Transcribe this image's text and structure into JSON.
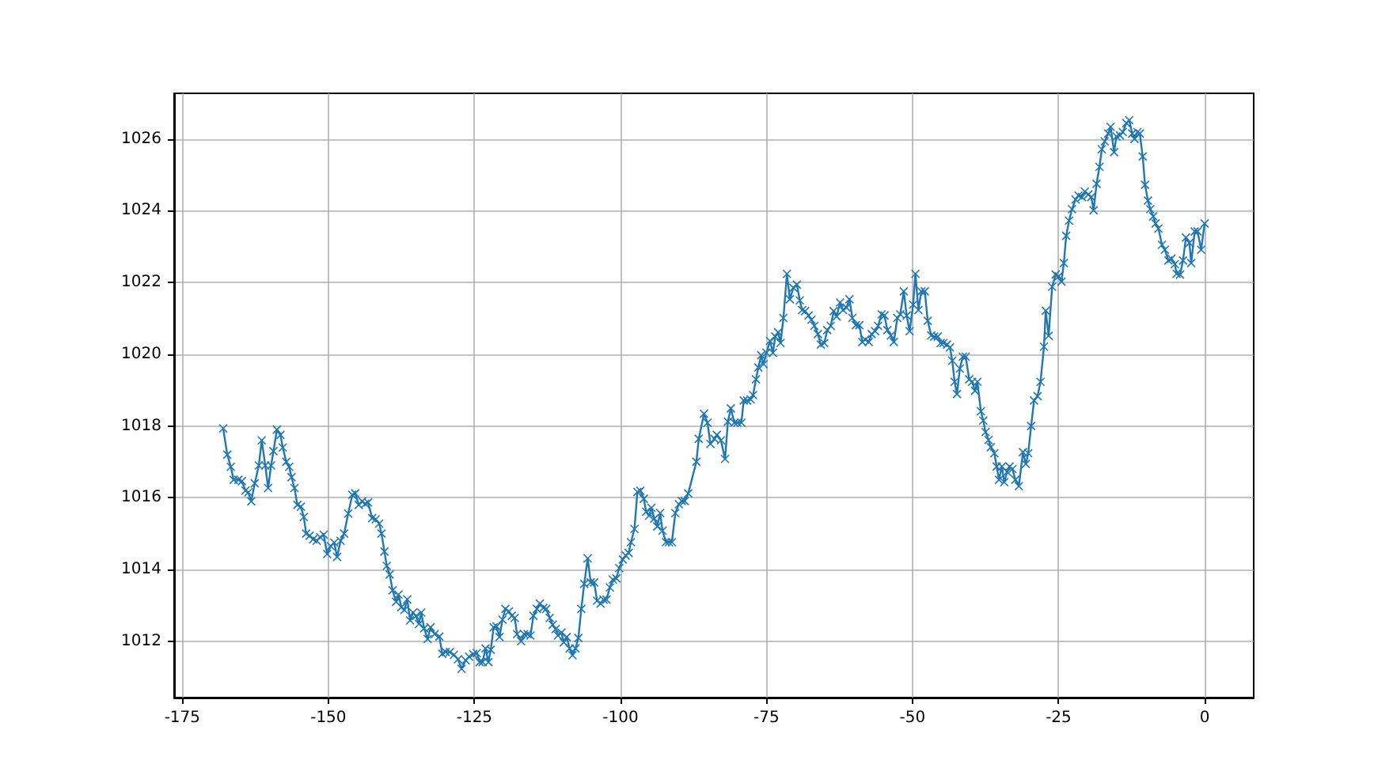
{
  "chart_data": {
    "type": "line",
    "marker": "cross",
    "grid": true,
    "xlim": [
      -176.4,
      8.4
    ],
    "ylim": [
      1010.43,
      1027.27
    ],
    "xticks": [
      -175,
      -150,
      -125,
      -100,
      -75,
      -50,
      -25,
      0
    ],
    "yticks": [
      1012,
      1014,
      1016,
      1018,
      1020,
      1022,
      1024,
      1026
    ],
    "series": [
      {
        "color": "#1f77b4",
        "x": [
          -168,
          -167.3,
          -166.7,
          -166.2,
          -165.4,
          -164.8,
          -164.2,
          -163.7,
          -163.2,
          -162.6,
          -161.9,
          -161.4,
          -160.8,
          -160.3,
          -159.8,
          -159.4,
          -158.8,
          -158.2,
          -157.8,
          -157.2,
          -156.7,
          -156.3,
          -155.8,
          -155.3,
          -154.7,
          -154.2,
          -153.8,
          -153.2,
          -152.6,
          -152,
          -151.4,
          -150.8,
          -150.2,
          -149.6,
          -149,
          -148.5,
          -147.9,
          -147.3,
          -146.6,
          -145.9,
          -145.4,
          -144.8,
          -144.2,
          -143.7,
          -143.2,
          -142.5,
          -141.9,
          -141.3,
          -140.9,
          -140.4,
          -140,
          -139.5,
          -139,
          -138.4,
          -138,
          -137.5,
          -137,
          -136.5,
          -136,
          -135.5,
          -135,
          -134.5,
          -134.1,
          -133.6,
          -133,
          -132.5,
          -131.8,
          -131,
          -130.5,
          -129.9,
          -129.2,
          -128.5,
          -127.8,
          -127.2,
          -126.5,
          -125.9,
          -125.2,
          -124.6,
          -124.1,
          -123.6,
          -123.1,
          -122.6,
          -122.2,
          -121.7,
          -121.2,
          -120.7,
          -120.2,
          -119.7,
          -119.1,
          -118.6,
          -118.1,
          -117.7,
          -117,
          -116.5,
          -115.9,
          -115.4,
          -114.9,
          -114.3,
          -113.8,
          -113.2,
          -112.7,
          -112.1,
          -111.6,
          -111.1,
          -110.7,
          -110.1,
          -109.7,
          -109.2,
          -108.7,
          -108.2,
          -107.7,
          -107.2,
          -106.7,
          -106.2,
          -105.6,
          -105.1,
          -104.5,
          -104,
          -103.4,
          -102.9,
          -102.4,
          -101.8,
          -101.3,
          -100.7,
          -100.2,
          -99.6,
          -99.1,
          -98.6,
          -98.2,
          -97.6,
          -97.1,
          -96.6,
          -96,
          -95.6,
          -95.1,
          -94.7,
          -94.2,
          -93.7,
          -93.2,
          -92.8,
          -92.2,
          -91.7,
          -91.2,
          -90.6,
          -90,
          -89.5,
          -89,
          -88.4,
          -87,
          -86.6,
          -85.7,
          -85.1,
          -84.6,
          -83.9,
          -83.5,
          -82.8,
          -82.1,
          -81.6,
          -81.1,
          -80.5,
          -80,
          -79.3,
          -78.9,
          -78.3,
          -77.7,
          -77.3,
          -76.8,
          -76.4,
          -75.9,
          -75.5,
          -75,
          -74.4,
          -73.9,
          -73.5,
          -73,
          -72.6,
          -72.1,
          -71.5,
          -71,
          -70.4,
          -69.8,
          -69.3,
          -68.9,
          -68.4,
          -67.8,
          -67.3,
          -66.8,
          -66.2,
          -65.7,
          -65.1,
          -64.6,
          -64,
          -63.5,
          -63,
          -62.4,
          -61.9,
          -61.3,
          -60.8,
          -60.3,
          -59.7,
          -59.1,
          -58.6,
          -58.1,
          -57.5,
          -57,
          -56.4,
          -55.9,
          -55.3,
          -54.8,
          -54.3,
          -53.7,
          -53.2,
          -52.6,
          -52.1,
          -51.5,
          -51,
          -50.5,
          -49.9,
          -49.5,
          -49,
          -48.5,
          -47.9,
          -47.4,
          -46.8,
          -46.3,
          -45.7,
          -45.2,
          -44.7,
          -44.1,
          -43.6,
          -43.2,
          -42.8,
          -42.4,
          -41.9,
          -41.4,
          -40.9,
          -40.3,
          -39.8,
          -39.3,
          -38.9,
          -38.3,
          -37.9,
          -37.5,
          -37,
          -36.6,
          -36,
          -35.6,
          -35.2,
          -34.7,
          -34.3,
          -33.8,
          -33.4,
          -32.9,
          -32.4,
          -31.8,
          -31.1,
          -30.6,
          -30.2,
          -29.7,
          -29.2,
          -28.6,
          -28.1,
          -27.5,
          -27.2,
          -26.7,
          -26.1,
          -25.5,
          -25,
          -24.5,
          -24.1,
          -23.7,
          -23.2,
          -22.7,
          -22.1,
          -21.6,
          -21,
          -20.5,
          -19.9,
          -19.4,
          -19,
          -18.5,
          -18,
          -17.6,
          -17.1,
          -16.5,
          -16.1,
          -15.5,
          -15.1,
          -14.5,
          -14,
          -13.4,
          -12.9,
          -12.4,
          -12,
          -11.5,
          -11.1,
          -10.6,
          -10.2,
          -9.7,
          -9.3,
          -8.8,
          -8.4,
          -7.9,
          -7.3,
          -6.8,
          -6.2,
          -5.7,
          -5.1,
          -4.8,
          -4.2,
          -3.7,
          -3.2,
          -2.6,
          -2.3,
          -1.7,
          -1.2,
          -0.6,
          0
        ],
        "values": [
          1017.93,
          1017.2,
          1016.86,
          1016.5,
          1016.5,
          1016.46,
          1016.2,
          1016.15,
          1015.9,
          1016.4,
          1016.9,
          1017.6,
          1016.9,
          1016.27,
          1016.9,
          1017.3,
          1017.9,
          1017.75,
          1017.4,
          1017.0,
          1016.86,
          1016.57,
          1016.27,
          1015.8,
          1015.75,
          1015.46,
          1015.0,
          1014.94,
          1014.84,
          1014.8,
          1014.9,
          1014.97,
          1014.43,
          1014.65,
          1014.75,
          1014.35,
          1014.8,
          1015.0,
          1015.56,
          1016.08,
          1016.12,
          1015.8,
          1015.9,
          1015.83,
          1015.87,
          1015.43,
          1015.4,
          1015.28,
          1015.0,
          1014.5,
          1014.1,
          1013.86,
          1013.42,
          1013.1,
          1013.3,
          1012.95,
          1012.87,
          1013.17,
          1012.58,
          1012.8,
          1012.7,
          1012.48,
          1012.8,
          1012.36,
          1012.06,
          1012.39,
          1012.2,
          1012.13,
          1011.65,
          1011.7,
          1011.7,
          1011.62,
          1011.5,
          1011.23,
          1011.47,
          1011.57,
          1011.64,
          1011.67,
          1011.42,
          1011.42,
          1011.8,
          1011.42,
          1011.76,
          1012.39,
          1012.41,
          1012.12,
          1012.6,
          1012.9,
          1012.83,
          1012.71,
          1012.65,
          1012.2,
          1012.0,
          1012.2,
          1012.2,
          1012.16,
          1012.71,
          1012.9,
          1013.05,
          1012.93,
          1012.9,
          1012.65,
          1012.46,
          1012.34,
          1012.16,
          1012.24,
          1011.97,
          1012.12,
          1011.8,
          1011.61,
          1011.8,
          1012.09,
          1012.9,
          1013.6,
          1014.31,
          1013.64,
          1013.64,
          1013.13,
          1013.05,
          1013.16,
          1013.16,
          1013.5,
          1013.72,
          1013.75,
          1014.04,
          1014.28,
          1014.39,
          1014.46,
          1014.76,
          1015.13,
          1016.16,
          1016.19,
          1015.97,
          1015.61,
          1015.5,
          1015.72,
          1015.42,
          1015.2,
          1015.57,
          1015.08,
          1014.76,
          1014.76,
          1014.76,
          1015.57,
          1015.82,
          1015.91,
          1015.91,
          1016.12,
          1017.0,
          1017.64,
          1018.34,
          1018.09,
          1017.5,
          1017.64,
          1017.75,
          1017.6,
          1017.08,
          1018.12,
          1018.49,
          1018.09,
          1018.09,
          1018.09,
          1018.71,
          1018.71,
          1018.74,
          1018.86,
          1019.3,
          1019.63,
          1019.97,
          1019.72,
          1020.04,
          1020.37,
          1020.04,
          1020.49,
          1020.61,
          1020.31,
          1021.01,
          1022.24,
          1021.53,
          1021.85,
          1021.94,
          1021.5,
          1021.23,
          1021.2,
          1021.08,
          1020.96,
          1020.79,
          1020.56,
          1020.27,
          1020.31,
          1020.67,
          1020.79,
          1021.2,
          1021.05,
          1021.44,
          1021.23,
          1021.3,
          1021.53,
          1021.01,
          1020.81,
          1020.81,
          1020.34,
          1020.41,
          1020.34,
          1020.56,
          1020.64,
          1020.79,
          1021.11,
          1021.08,
          1020.67,
          1020.52,
          1020.34,
          1021.01,
          1021.11,
          1021.75,
          1021.08,
          1020.64,
          1021.38,
          1022.24,
          1021.23,
          1021.75,
          1021.75,
          1020.93,
          1020.52,
          1020.49,
          1020.49,
          1020.31,
          1020.31,
          1020.27,
          1020.19,
          1019.82,
          1019.23,
          1018.89,
          1019.6,
          1019.93,
          1019.93,
          1019.3,
          1019.23,
          1018.98,
          1019.23,
          1018.41,
          1018.15,
          1017.83,
          1017.61,
          1017.41,
          1017.24,
          1016.87,
          1016.5,
          1016.87,
          1016.43,
          1016.72,
          1016.87,
          1016.8,
          1016.5,
          1016.32,
          1017.27,
          1016.94,
          1017.24,
          1018.0,
          1018.71,
          1018.83,
          1019.23,
          1020.21,
          1021.21,
          1020.51,
          1021.88,
          1022.22,
          1022.17,
          1022.02,
          1022.54,
          1023.3,
          1023.72,
          1024.04,
          1024.31,
          1024.42,
          1024.38,
          1024.53,
          1024.45,
          1024.38,
          1024.01,
          1024.75,
          1025.22,
          1025.71,
          1025.93,
          1026.15,
          1026.34,
          1025.63,
          1026.07,
          1026.1,
          1026.19,
          1026.44,
          1026.52,
          1026.15,
          1026.0,
          1026.19,
          1026.15,
          1025.51,
          1024.72,
          1024.28,
          1024.04,
          1023.84,
          1023.64,
          1023.5,
          1023.05,
          1022.91,
          1022.61,
          1022.66,
          1022.51,
          1022.24,
          1022.22,
          1022.61,
          1023.25,
          1023.1,
          1022.54,
          1023.42,
          1023.42,
          1022.91,
          1023.64
        ]
      }
    ]
  }
}
